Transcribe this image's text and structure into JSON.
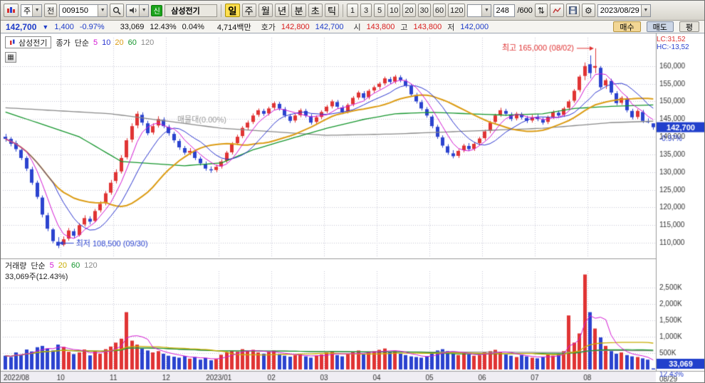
{
  "toolbar": {
    "market_combo": "주",
    "all_button": "전",
    "code_input": "009150",
    "new_badge": "신",
    "stock_name": "삼성전기",
    "period_buttons": [
      "일",
      "주",
      "월",
      "년",
      "분",
      "초",
      "틱"
    ],
    "interval_buttons": [
      "1",
      "3",
      "5",
      "10",
      "20",
      "30",
      "60",
      "120"
    ],
    "bar_count": "248",
    "bar_max": "/600",
    "date": "2023/08/29"
  },
  "info_bar": {
    "price": "142,700",
    "change_arrow": "▼",
    "change": "1,400",
    "change_pct": "-0.97%",
    "volume": "33,069",
    "volume_ratio": "12.43%",
    "turnover_pct": "0.04%",
    "trade_value": "4,714백만",
    "quote_label": "호가",
    "ask": "142,800",
    "bid": "142,700",
    "open_label": "시",
    "open": "143,800",
    "high_label": "고",
    "high": "143,800",
    "low_label": "저",
    "low": "142,000",
    "buy_button": "매수",
    "sell_button": "매도",
    "avg_button": "평"
  },
  "price_pane": {
    "legend_title": "삼성전기",
    "legend_type": "종가",
    "legend_method": "단순",
    "ma_labels": [
      {
        "label": "5",
        "color": "#d418d4"
      },
      {
        "label": "10",
        "color": "#2b35d0"
      },
      {
        "label": "20",
        "color": "#dc9c14"
      },
      {
        "label": "60",
        "color": "#15962d"
      },
      {
        "label": "120",
        "color": "#8a8a8a"
      }
    ],
    "lc_label": "LC:31,52",
    "hc_label": "HC:-13,52",
    "overlay_note": "매물대(0.00%)",
    "y_ticks": [
      "160,000",
      "155,000",
      "150,000",
      "145,000",
      "140,000",
      "135,000",
      "130,000",
      "125,000",
      "120,000",
      "115,000",
      "110,000"
    ],
    "current_badge": "142,700",
    "current_pct": "-0.97%"
  },
  "volume_pane": {
    "legend_title": "거래량",
    "legend_method": "단순",
    "ma_labels": [
      {
        "label": "5",
        "color": "#d418d4"
      },
      {
        "label": "20",
        "color": "#c8ac00"
      },
      {
        "label": "60",
        "color": "#15962d"
      },
      {
        "label": "120",
        "color": "#8a8a8a"
      }
    ],
    "volume_text": "33,069주(12.43%)",
    "y_ticks": [
      "2,500K",
      "2,000K",
      "1,500K",
      "1,000K",
      "500K"
    ],
    "current_badge": "33,069",
    "current_pct": "12.43%"
  },
  "chart_data": {
    "type": "candlestick+volume",
    "symbol": "삼성전기",
    "code": "009150",
    "timeframe": "일",
    "price_range": [
      106000,
      168000
    ],
    "volume_range_k": [
      0,
      3000
    ],
    "end_label": "08/29",
    "x_ticks": [
      {
        "index": 0,
        "label": "2022/08"
      },
      {
        "index": 11,
        "label": "10"
      },
      {
        "index": 21,
        "label": "11"
      },
      {
        "index": 31,
        "label": "12"
      },
      {
        "index": 41,
        "label": "2023/01"
      },
      {
        "index": 51,
        "label": "02"
      },
      {
        "index": 61,
        "label": "03"
      },
      {
        "index": 71,
        "label": "04"
      },
      {
        "index": 81,
        "label": "05"
      },
      {
        "index": 91,
        "label": "06"
      },
      {
        "index": 101,
        "label": "07"
      },
      {
        "index": 111,
        "label": "08"
      }
    ],
    "extremes": {
      "high": {
        "index": 112,
        "price": 165000,
        "label": "최고 165,000 (08/02)"
      },
      "low": {
        "index": 10,
        "price": 108500,
        "label": "최저 108,500 (09/30)"
      }
    },
    "candles_ohlc": [
      [
        140000,
        140800,
        138600,
        139400
      ],
      [
        139400,
        139900,
        137300,
        138000
      ],
      [
        138200,
        138900,
        135800,
        136500
      ],
      [
        136300,
        136800,
        133400,
        134000
      ],
      [
        134000,
        134500,
        130300,
        131000
      ],
      [
        130800,
        131500,
        126400,
        127000
      ],
      [
        127000,
        127600,
        122400,
        123000
      ],
      [
        122800,
        123400,
        117200,
        118000
      ],
      [
        117800,
        118500,
        113300,
        114000
      ],
      [
        113800,
        114200,
        109900,
        110500
      ],
      [
        110300,
        111600,
        108500,
        109200
      ],
      [
        109500,
        111800,
        109000,
        111000
      ],
      [
        111200,
        114200,
        110600,
        113500
      ],
      [
        113300,
        114000,
        111400,
        112000
      ],
      [
        112200,
        115600,
        111800,
        115000
      ],
      [
        115200,
        117800,
        114600,
        117000
      ],
      [
        116800,
        117500,
        115200,
        116000
      ],
      [
        116200,
        119600,
        115800,
        119000
      ],
      [
        119200,
        121800,
        118600,
        121000
      ],
      [
        121200,
        124600,
        120600,
        124000
      ],
      [
        124200,
        127800,
        123600,
        127000
      ],
      [
        127500,
        130800,
        126800,
        130000
      ],
      [
        130200,
        134800,
        129600,
        134000
      ],
      [
        134200,
        139600,
        133600,
        139000
      ],
      [
        139200,
        143800,
        138400,
        143000
      ],
      [
        143200,
        147200,
        142400,
        146500
      ],
      [
        146200,
        146900,
        143200,
        144000
      ],
      [
        143800,
        144500,
        140400,
        141000
      ],
      [
        141200,
        143800,
        140600,
        143000
      ],
      [
        143200,
        145800,
        142600,
        145000
      ],
      [
        144800,
        145500,
        142400,
        143000
      ],
      [
        142800,
        143400,
        140300,
        141000
      ],
      [
        140800,
        141400,
        138300,
        139000
      ],
      [
        138800,
        139400,
        136300,
        137000
      ],
      [
        136800,
        137400,
        134900,
        135500
      ],
      [
        135500,
        136800,
        134800,
        136000
      ],
      [
        135800,
        136400,
        133400,
        134000
      ],
      [
        133800,
        134400,
        131900,
        132500
      ],
      [
        132300,
        133000,
        130400,
        131000
      ],
      [
        130800,
        131600,
        129800,
        130500
      ],
      [
        130600,
        132200,
        130000,
        131500
      ],
      [
        131600,
        133600,
        131000,
        133000
      ],
      [
        133200,
        136000,
        132600,
        135500
      ],
      [
        135600,
        138500,
        135000,
        138000
      ],
      [
        138200,
        140600,
        137600,
        140000
      ],
      [
        140200,
        143000,
        139600,
        142500
      ],
      [
        142600,
        144600,
        142000,
        144000
      ],
      [
        144200,
        146600,
        143600,
        146000
      ],
      [
        146200,
        148000,
        145600,
        147500
      ],
      [
        147300,
        147900,
        145900,
        146500
      ],
      [
        146600,
        148500,
        146000,
        148000
      ],
      [
        148200,
        150000,
        147600,
        149500
      ],
      [
        149300,
        149900,
        147400,
        148000
      ],
      [
        147800,
        148400,
        145400,
        146000
      ],
      [
        145800,
        146400,
        143900,
        144500
      ],
      [
        144600,
        146500,
        144000,
        146000
      ],
      [
        146100,
        148000,
        145500,
        147500
      ],
      [
        147300,
        147900,
        145400,
        146000
      ],
      [
        145800,
        146400,
        143400,
        144000
      ],
      [
        144200,
        146000,
        143600,
        145500
      ],
      [
        145600,
        147500,
        145000,
        147000
      ],
      [
        147200,
        149000,
        146600,
        148500
      ],
      [
        148600,
        150500,
        148000,
        150000
      ],
      [
        149800,
        150400,
        147900,
        148500
      ],
      [
        148300,
        148900,
        146400,
        147000
      ],
      [
        147200,
        149500,
        146600,
        149000
      ],
      [
        149200,
        151500,
        148600,
        151000
      ],
      [
        151100,
        153000,
        150500,
        152500
      ],
      [
        152300,
        152900,
        150400,
        151000
      ],
      [
        151200,
        153500,
        150600,
        153000
      ],
      [
        153100,
        154500,
        152400,
        154000
      ],
      [
        154100,
        155500,
        153400,
        155000
      ],
      [
        155100,
        157000,
        154500,
        156500
      ],
      [
        156300,
        156900,
        154900,
        155500
      ],
      [
        155600,
        157500,
        155000,
        157000
      ],
      [
        156800,
        157400,
        155400,
        156000
      ],
      [
        155800,
        156400,
        153900,
        154500
      ],
      [
        154300,
        154900,
        151400,
        152000
      ],
      [
        151800,
        152400,
        149400,
        150000
      ],
      [
        149800,
        150400,
        147400,
        148000
      ],
      [
        147800,
        148400,
        145400,
        146000
      ],
      [
        145700,
        146200,
        142400,
        143000
      ],
      [
        142800,
        143400,
        139400,
        140000
      ],
      [
        139800,
        140400,
        136900,
        137500
      ],
      [
        137300,
        137900,
        134900,
        135500
      ],
      [
        135300,
        136200,
        133900,
        134500
      ],
      [
        134600,
        136500,
        134000,
        136000
      ],
      [
        136200,
        138000,
        135600,
        137500
      ],
      [
        137400,
        138200,
        136000,
        136500
      ],
      [
        136600,
        138500,
        136000,
        138000
      ],
      [
        138200,
        140000,
        137600,
        139500
      ],
      [
        139600,
        142000,
        139000,
        141500
      ],
      [
        141700,
        144500,
        141000,
        144000
      ],
      [
        144200,
        146500,
        143600,
        146000
      ],
      [
        146200,
        148200,
        145600,
        147500
      ],
      [
        147300,
        147900,
        145900,
        146500
      ],
      [
        146300,
        146900,
        144400,
        145000
      ],
      [
        145200,
        147000,
        144600,
        146500
      ],
      [
        146300,
        146900,
        144900,
        145500
      ],
      [
        145300,
        145900,
        143900,
        144500
      ],
      [
        144600,
        146200,
        144000,
        145500
      ],
      [
        145600,
        146400,
        144400,
        145000
      ],
      [
        144800,
        145400,
        143400,
        144000
      ],
      [
        144200,
        146000,
        143600,
        145500
      ],
      [
        145600,
        147500,
        145000,
        147000
      ],
      [
        146800,
        147400,
        145400,
        146000
      ],
      [
        146200,
        148500,
        145600,
        148000
      ],
      [
        148200,
        150500,
        147600,
        150000
      ],
      [
        150200,
        153500,
        149600,
        153000
      ],
      [
        153200,
        157500,
        152600,
        157000
      ],
      [
        157200,
        161000,
        156000,
        160000
      ],
      [
        160500,
        163000,
        156500,
        158000
      ],
      [
        159500,
        165000,
        158000,
        160000
      ],
      [
        159500,
        160000,
        153500,
        154000
      ],
      [
        154500,
        156500,
        153500,
        156000
      ],
      [
        155800,
        156400,
        151900,
        152500
      ],
      [
        152300,
        152900,
        148900,
        149500
      ],
      [
        149600,
        151500,
        149000,
        151000
      ],
      [
        150800,
        151400,
        146900,
        147500
      ],
      [
        147300,
        147900,
        144900,
        145500
      ],
      [
        145600,
        147800,
        145000,
        147300
      ],
      [
        147000,
        147600,
        143900,
        144500
      ],
      [
        144300,
        145200,
        143800,
        144100
      ],
      [
        143800,
        143800,
        142000,
        142700
      ]
    ],
    "volumes_k": [
      420,
      380,
      520,
      460,
      610,
      550,
      680,
      720,
      640,
      580,
      760,
      690,
      540,
      470,
      520,
      610,
      430,
      560,
      480,
      620,
      700,
      820,
      940,
      1750,
      880,
      760,
      640,
      580,
      520,
      560,
      480,
      420,
      390,
      360,
      410,
      330,
      380,
      300,
      350,
      280,
      320,
      450,
      520,
      580,
      540,
      620,
      560,
      600,
      520,
      480,
      540,
      580,
      460,
      420,
      390,
      440,
      480,
      400,
      360,
      420,
      460,
      520,
      560,
      440,
      400,
      480,
      540,
      580,
      460,
      520,
      560,
      600,
      640,
      520,
      560,
      480,
      440,
      400,
      380,
      360,
      400,
      520,
      580,
      620,
      560,
      480,
      440,
      500,
      460,
      420,
      440,
      520,
      560,
      600,
      540,
      460,
      420,
      380,
      440,
      400,
      360,
      340,
      380,
      460,
      420,
      480,
      560,
      1650,
      820,
      1100,
      2900,
      1750,
      1250,
      980,
      720,
      560,
      480,
      520,
      440,
      400,
      380,
      340,
      300,
      33
    ],
    "ma60_anchors": [
      [
        0,
        147000
      ],
      [
        7,
        143500
      ],
      [
        14,
        140000
      ],
      [
        22,
        133000
      ],
      [
        34,
        131800
      ],
      [
        41,
        132600
      ],
      [
        47,
        136300
      ],
      [
        54,
        139400
      ],
      [
        61,
        142400
      ],
      [
        68,
        144900
      ],
      [
        74,
        146500
      ],
      [
        81,
        146900
      ],
      [
        88,
        146500
      ],
      [
        95,
        146100
      ],
      [
        102,
        146500
      ],
      [
        108,
        148000
      ],
      [
        115,
        148600
      ],
      [
        123,
        149000
      ]
    ],
    "ma120_anchors": [
      [
        0,
        148200
      ],
      [
        20,
        146500
      ],
      [
        41,
        142400
      ],
      [
        61,
        140400
      ],
      [
        74,
        140800
      ],
      [
        88,
        141600
      ],
      [
        102,
        142400
      ],
      [
        115,
        144000
      ],
      [
        123,
        144400
      ]
    ]
  }
}
